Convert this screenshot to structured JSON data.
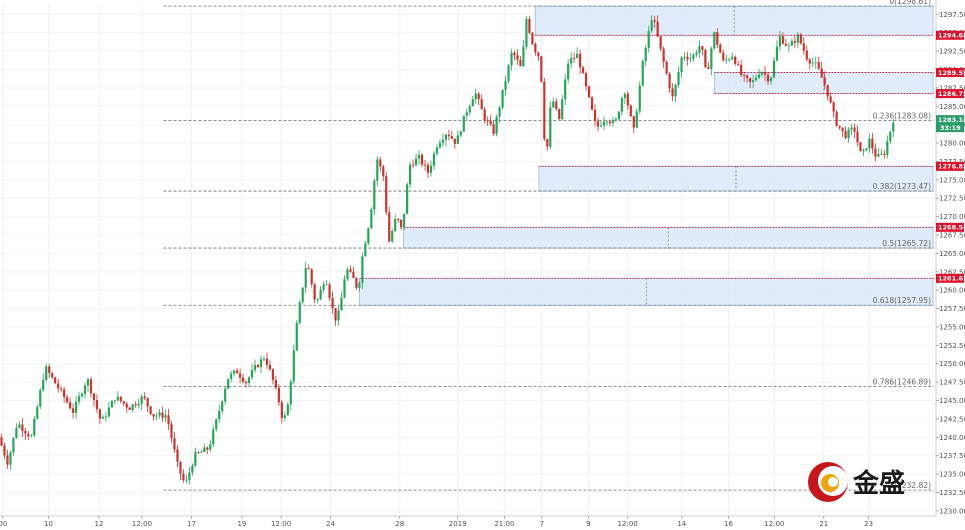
{
  "chart_data": {
    "type": "candlestick",
    "instrument_note": "",
    "ylim": [
      1230.0,
      1300.0
    ],
    "y_ticks": [
      "1297.50",
      "1295.00",
      "1292.50",
      "1290.00",
      "1287.50",
      "1285.00",
      "1282.50",
      "1280.00",
      "1277.50",
      "1275.00",
      "1272.50",
      "1270.00",
      "1267.50",
      "1265.00",
      "1262.50",
      "1260.00",
      "1257.50",
      "1255.00",
      "1252.50",
      "1250.00",
      "1247.50",
      "1245.00",
      "1242.50",
      "1240.00",
      "1237.50",
      "1235.00",
      "1232.50",
      "1230.00"
    ],
    "x_ticks": [
      "00",
      "10",
      "12",
      "12:00",
      "17",
      "19",
      "12:00",
      "24",
      "28",
      "2019",
      "21:00",
      "7",
      "9",
      "12:00",
      "14",
      "16",
      "12:00",
      "21",
      "23"
    ],
    "fib_levels": [
      {
        "label": "0(1298.61)",
        "value": 1298.61
      },
      {
        "label": "0.236(1283.08)",
        "value": 1283.08
      },
      {
        "label": "0.382(1273.47)",
        "value": 1273.47
      },
      {
        "label": "0.5(1265.72)",
        "value": 1265.72
      },
      {
        "label": "0.618(1257.95)",
        "value": 1257.95
      },
      {
        "label": "0.786(1246.89)",
        "value": 1246.89
      },
      {
        "label": "1(1232.82)",
        "value": 1232.82
      }
    ],
    "price_tags": [
      {
        "text": "1294.65",
        "value": 1294.65,
        "color": "#e0102a"
      },
      {
        "text": "1289.59",
        "value": 1289.59,
        "color": "#e0102a"
      },
      {
        "text": "1286.72",
        "value": 1286.72,
        "color": "#e0102a"
      },
      {
        "text": "1276.83",
        "value": 1276.83,
        "color": "#e0102a"
      },
      {
        "text": "1268.54",
        "value": 1268.54,
        "color": "#e0102a"
      },
      {
        "text": "1261.61",
        "value": 1261.61,
        "color": "#e0102a"
      }
    ],
    "current_price": {
      "price": "1283.18",
      "countdown": "33:19",
      "value": 1283.18,
      "color": "#2a9d6a"
    },
    "zones": [
      {
        "x0": 0.573,
        "x1": 0.999,
        "y_top": 1298.61,
        "y_bottom": 1294.65
      },
      {
        "x0": 0.765,
        "x1": 0.999,
        "y_top": 1289.59,
        "y_bottom": 1286.72
      },
      {
        "x0": 0.577,
        "x1": 0.999,
        "y_top": 1276.83,
        "y_bottom": 1273.47
      },
      {
        "x0": 0.432,
        "x1": 0.999,
        "y_top": 1268.54,
        "y_bottom": 1265.72
      },
      {
        "x0": 0.385,
        "x1": 0.999,
        "y_top": 1261.61,
        "y_bottom": 1257.95
      }
    ],
    "path": [
      [
        0.0,
        1240.0
      ],
      [
        0.01,
        1236.5
      ],
      [
        0.02,
        1242.0
      ],
      [
        0.035,
        1240.0
      ],
      [
        0.05,
        1249.5
      ],
      [
        0.065,
        1246.5
      ],
      [
        0.08,
        1243.5
      ],
      [
        0.095,
        1248.0
      ],
      [
        0.11,
        1242.0
      ],
      [
        0.125,
        1245.5
      ],
      [
        0.14,
        1244.0
      ],
      [
        0.155,
        1245.5
      ],
      [
        0.165,
        1243.0
      ],
      [
        0.18,
        1243.0
      ],
      [
        0.192,
        1236.0
      ],
      [
        0.2,
        1233.5
      ],
      [
        0.21,
        1237.5
      ],
      [
        0.225,
        1238.5
      ],
      [
        0.235,
        1243.0
      ],
      [
        0.245,
        1248.0
      ],
      [
        0.255,
        1249.0
      ],
      [
        0.265,
        1247.5
      ],
      [
        0.275,
        1249.5
      ],
      [
        0.285,
        1251.0
      ],
      [
        0.292,
        1248.5
      ],
      [
        0.3,
        1245.0
      ],
      [
        0.305,
        1242.0
      ],
      [
        0.31,
        1244.5
      ],
      [
        0.32,
        1256.0
      ],
      [
        0.33,
        1264.0
      ],
      [
        0.34,
        1258.0
      ],
      [
        0.35,
        1262.0
      ],
      [
        0.36,
        1256.0
      ],
      [
        0.365,
        1257.0
      ],
      [
        0.372,
        1263.0
      ],
      [
        0.38,
        1261.5
      ],
      [
        0.385,
        1260.0
      ],
      [
        0.39,
        1265.0
      ],
      [
        0.398,
        1270.0
      ],
      [
        0.405,
        1278.0
      ],
      [
        0.412,
        1275.5
      ],
      [
        0.418,
        1266.5
      ],
      [
        0.426,
        1270.0
      ],
      [
        0.432,
        1268.0
      ],
      [
        0.44,
        1277.0
      ],
      [
        0.45,
        1278.0
      ],
      [
        0.46,
        1276.0
      ],
      [
        0.47,
        1280.0
      ],
      [
        0.48,
        1281.5
      ],
      [
        0.49,
        1280.0
      ],
      [
        0.5,
        1284.0
      ],
      [
        0.51,
        1287.0
      ],
      [
        0.52,
        1283.5
      ],
      [
        0.53,
        1281.5
      ],
      [
        0.54,
        1287.0
      ],
      [
        0.55,
        1292.5
      ],
      [
        0.56,
        1290.0
      ],
      [
        0.565,
        1297.0
      ],
      [
        0.573,
        1293.0
      ],
      [
        0.58,
        1291.5
      ],
      [
        0.586,
        1277.0
      ],
      [
        0.592,
        1286.5
      ],
      [
        0.6,
        1283.0
      ],
      [
        0.61,
        1291.0
      ],
      [
        0.62,
        1292.0
      ],
      [
        0.63,
        1287.0
      ],
      [
        0.64,
        1282.0
      ],
      [
        0.65,
        1283.5
      ],
      [
        0.66,
        1282.5
      ],
      [
        0.67,
        1287.5
      ],
      [
        0.68,
        1281.5
      ],
      [
        0.69,
        1291.0
      ],
      [
        0.7,
        1297.5
      ],
      [
        0.71,
        1292.0
      ],
      [
        0.722,
        1286.0
      ],
      [
        0.732,
        1292.0
      ],
      [
        0.742,
        1291.5
      ],
      [
        0.752,
        1293.5
      ],
      [
        0.758,
        1289.0
      ],
      [
        0.766,
        1295.0
      ],
      [
        0.776,
        1291.0
      ],
      [
        0.786,
        1292.0
      ],
      [
        0.796,
        1289.0
      ],
      [
        0.806,
        1288.0
      ],
      [
        0.816,
        1290.0
      ],
      [
        0.826,
        1288.5
      ],
      [
        0.836,
        1294.5
      ],
      [
        0.846,
        1293.0
      ],
      [
        0.856,
        1294.5
      ],
      [
        0.866,
        1291.5
      ],
      [
        0.876,
        1290.5
      ],
      [
        0.886,
        1287.5
      ],
      [
        0.896,
        1283.0
      ],
      [
        0.906,
        1281.0
      ],
      [
        0.916,
        1282.0
      ],
      [
        0.924,
        1278.0
      ],
      [
        0.932,
        1280.5
      ],
      [
        0.94,
        1278.0
      ],
      [
        0.948,
        1278.5
      ],
      [
        0.958,
        1283.18
      ]
    ]
  },
  "watermark": {
    "brand_text": "金盛"
  }
}
